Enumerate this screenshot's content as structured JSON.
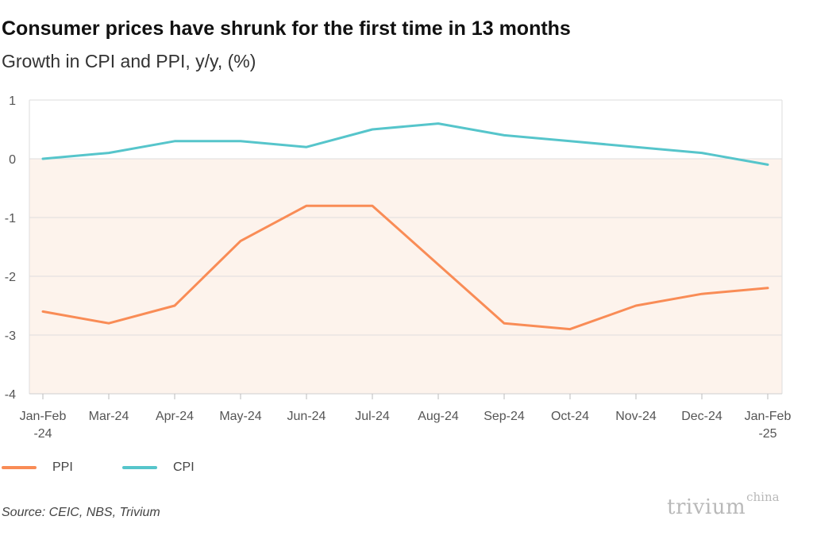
{
  "title": "Consumer prices have shrunk for the first time in 13 months",
  "subtitle": "Growth in CPI and PPI, y/y, (%)",
  "source": "Source: CEIC, NBS, Trivium",
  "logo": {
    "main": "trivium",
    "sup": "china"
  },
  "colors": {
    "ppi": "#f98c56",
    "cpi": "#56c5cb",
    "negative_band": "#fdf3ec",
    "grid": "#dedede"
  },
  "chart_data": {
    "type": "line",
    "categories": [
      [
        "Jan-Feb",
        "-24"
      ],
      [
        "Mar-24"
      ],
      [
        "Apr-24"
      ],
      [
        "May-24"
      ],
      [
        "Jun-24"
      ],
      [
        "Jul-24"
      ],
      [
        "Aug-24"
      ],
      [
        "Sep-24"
      ],
      [
        "Oct-24"
      ],
      [
        "Nov-24"
      ],
      [
        "Dec-24"
      ],
      [
        "Jan-Feb",
        "-25"
      ]
    ],
    "series": [
      {
        "name": "PPI",
        "color": "#f98c56",
        "values": [
          -2.6,
          -2.8,
          -2.5,
          -1.4,
          -0.8,
          -0.8,
          -1.8,
          -2.8,
          -2.9,
          -2.5,
          -2.3,
          -2.2
        ]
      },
      {
        "name": "CPI",
        "color": "#56c5cb",
        "values": [
          0.0,
          0.1,
          0.3,
          0.3,
          0.2,
          0.5,
          0.6,
          0.4,
          0.3,
          0.2,
          0.1,
          -0.1
        ]
      }
    ],
    "ylim": [
      -4,
      1
    ],
    "yticks": [
      1,
      0,
      -1,
      -2,
      -3,
      -4
    ],
    "negative_shading": true,
    "grid": true,
    "legend_position": "bottom-left"
  }
}
